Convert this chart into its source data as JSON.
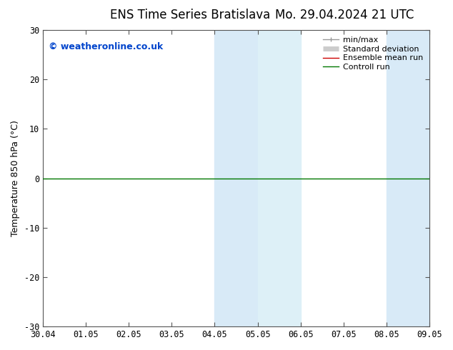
{
  "title_left": "ENS Time Series Bratislava",
  "title_right": "Mo. 29.04.2024 21 UTC",
  "ylabel": "Temperature 850 hPa (°C)",
  "ylim": [
    -30,
    30
  ],
  "yticks": [
    -30,
    -20,
    -10,
    0,
    10,
    20,
    30
  ],
  "x_labels": [
    "30.04",
    "01.05",
    "02.05",
    "03.05",
    "04.05",
    "05.05",
    "06.05",
    "07.05",
    "08.05",
    "09.05"
  ],
  "shaded_bands": [
    {
      "xstart": 4,
      "xend": 5,
      "color": "#d8eaf7"
    },
    {
      "xstart": 5,
      "xend": 6,
      "color": "#ddf0f7"
    },
    {
      "xstart": 8,
      "xend": 9,
      "color": "#d8eaf7"
    }
  ],
  "hline_y": 0,
  "hline_color": "#007700",
  "hline_lw": 1.0,
  "watermark": "© weatheronline.co.uk",
  "watermark_color": "#0044cc",
  "watermark_fontsize": 9,
  "legend_items": [
    {
      "label": "min/max",
      "color": "#999999",
      "lw": 1.0
    },
    {
      "label": "Standard deviation",
      "color": "#cccccc",
      "lw": 5
    },
    {
      "label": "Ensemble mean run",
      "color": "#cc0000",
      "lw": 1.0
    },
    {
      "label": "Controll run",
      "color": "#007700",
      "lw": 1.0
    }
  ],
  "grid_color": "#dddddd",
  "bg_color": "#ffffff",
  "plot_bg_color": "#ffffff",
  "title_fontsize": 12,
  "ylabel_fontsize": 9,
  "tick_fontsize": 8.5,
  "legend_fontsize": 8
}
